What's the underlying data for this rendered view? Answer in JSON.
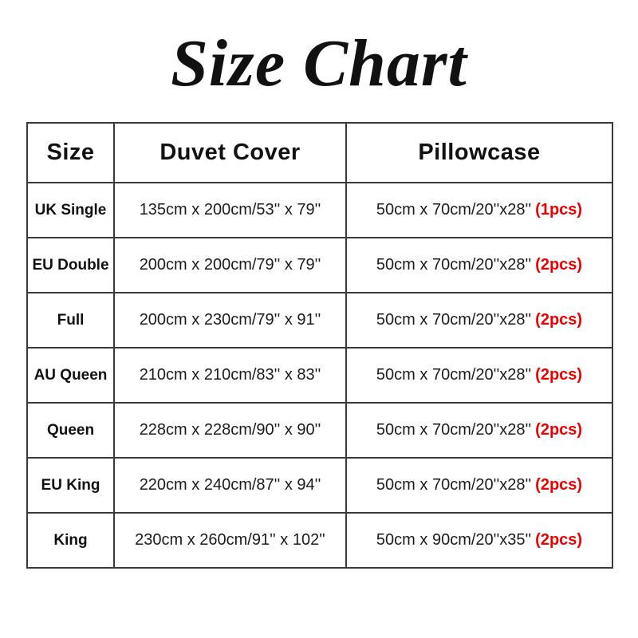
{
  "page": {
    "title": "Size Chart"
  },
  "colors": {
    "pcs_red": "#ee0000",
    "border": "#3a3a3a",
    "text": "#1c1c1c",
    "background": "#ffffff"
  },
  "table": {
    "columns": [
      "Size",
      "Duvet Cover",
      "Pillowcase"
    ],
    "rows": [
      {
        "size": "UK Single",
        "duvet": "135cm x 200cm/53'' x 79''",
        "pillow": "50cm x 70cm/20''x28''",
        "pcs": "(1pcs)"
      },
      {
        "size": "EU Double",
        "duvet": "200cm x 200cm/79'' x 79''",
        "pillow": "50cm x 70cm/20''x28''",
        "pcs": "(2pcs)"
      },
      {
        "size": "Full",
        "duvet": "200cm x 230cm/79'' x 91''",
        "pillow": "50cm x 70cm/20''x28''",
        "pcs": "(2pcs)"
      },
      {
        "size": "AU Queen",
        "duvet": "210cm x 210cm/83'' x 83''",
        "pillow": "50cm x 70cm/20''x28''",
        "pcs": "(2pcs)"
      },
      {
        "size": "Queen",
        "duvet": "228cm x 228cm/90'' x 90''",
        "pillow": "50cm x 70cm/20''x28''",
        "pcs": "(2pcs)"
      },
      {
        "size": "EU King",
        "duvet": "220cm x 240cm/87'' x 94''",
        "pillow": "50cm x 70cm/20''x28''",
        "pcs": "(2pcs)"
      },
      {
        "size": "King",
        "duvet": "230cm x 260cm/91'' x 102''",
        "pillow": "50cm x 90cm/20''x35''",
        "pcs": "(2pcs)"
      }
    ]
  }
}
